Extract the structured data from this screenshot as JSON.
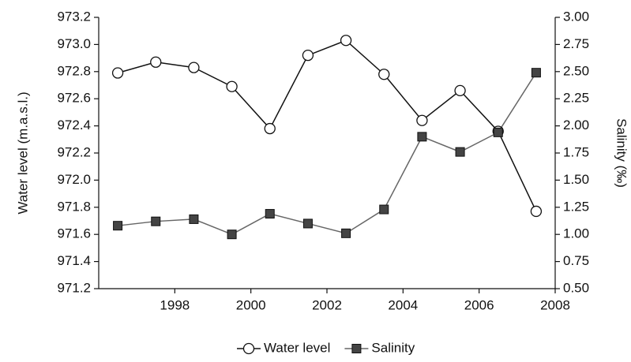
{
  "chart_data": {
    "type": "line",
    "y_label": "Water level (m.a.s.l.)",
    "y2_label": "Salinity (‰)",
    "x": [
      1996.5,
      1997.5,
      1998.5,
      1999.5,
      2000.5,
      2001.5,
      2002.5,
      2003.5,
      2004.5,
      2005.5,
      2006.5,
      2007.5
    ],
    "xlim": [
      1996,
      2008
    ],
    "xticks": [
      1998,
      2000,
      2002,
      2004,
      2006,
      2008
    ],
    "ylim": [
      971.2,
      973.2
    ],
    "yticks": [
      971.2,
      971.4,
      971.6,
      971.8,
      {
        "value": 972,
        "label": "972.0"
      },
      972.2,
      972.4,
      972.6,
      972.8,
      {
        "value": 973,
        "label": "973.0"
      },
      973.2
    ],
    "y2lim": [
      0.5,
      3.0
    ],
    "y2ticks": [
      {
        "value": 0.5,
        "label": "0.50"
      },
      0.75,
      {
        "value": 1,
        "label": "1.00"
      },
      1.25,
      {
        "value": 1.5,
        "label": "1.50"
      },
      1.75,
      {
        "value": 2,
        "label": "2.00"
      },
      2.25,
      {
        "value": 2.5,
        "label": "2.50"
      },
      2.75,
      {
        "value": 3,
        "label": "3.00"
      }
    ],
    "legend": "bottom",
    "series": [
      {
        "name": "Water level",
        "color": "#111111",
        "marker": "circle",
        "values": [
          972.79,
          972.87,
          972.83,
          972.69,
          972.38,
          972.92,
          973.03,
          972.78,
          972.44,
          972.66,
          972.36,
          971.77
        ]
      },
      {
        "name": "Salinity",
        "color": "#666666",
        "marker": "square",
        "axis": "y2",
        "values": [
          1.08,
          1.12,
          1.14,
          1.0,
          1.19,
          1.1,
          1.01,
          1.23,
          1.9,
          1.76,
          1.94,
          2.49
        ]
      }
    ]
  }
}
